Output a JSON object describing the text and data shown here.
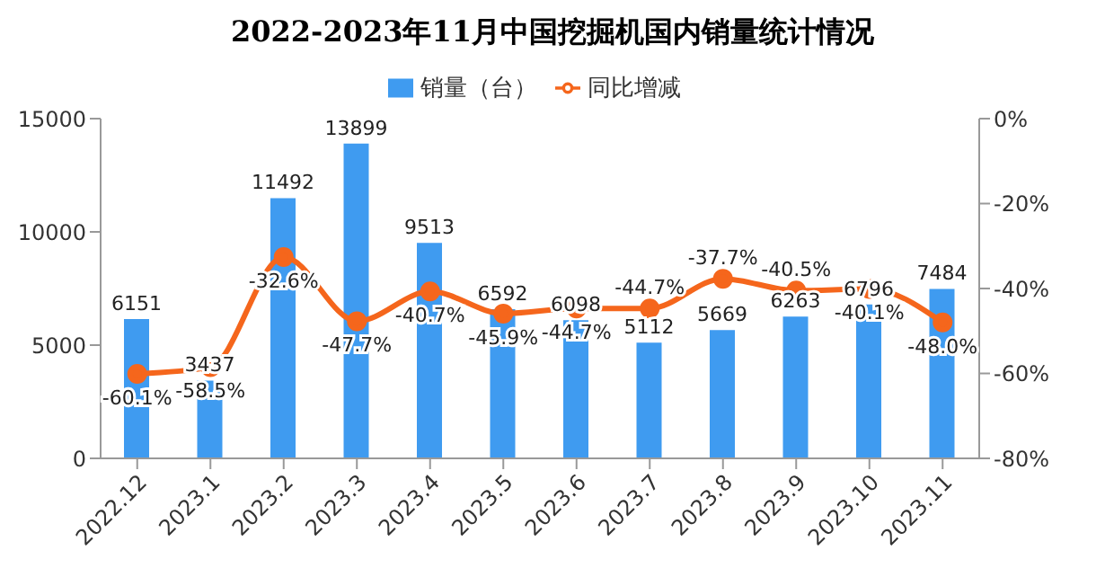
{
  "chart_data": {
    "type": "bar",
    "title": "2022-2023年11月中国挖掘机国内销量统计情况",
    "categories": [
      "2022.12",
      "2023.1",
      "2023.2",
      "2023.3",
      "2023.4",
      "2023.5",
      "2023.6",
      "2023.7",
      "2023.8",
      "2023.9",
      "2023.10",
      "2023.11"
    ],
    "series": [
      {
        "name": "销量（台）",
        "color": "#3f9bf0",
        "values": [
          6151,
          3437,
          11492,
          13899,
          9513,
          6592,
          6098,
          5112,
          5669,
          6263,
          6796,
          7484
        ],
        "value_labels": [
          "6151",
          "3437",
          "11492",
          "13899",
          "9513",
          "6592",
          "6098",
          "5112",
          "5669",
          "6263",
          "6796",
          "7484"
        ]
      },
      {
        "name": "同比增减",
        "type": "line",
        "axis": "y2",
        "color": "#f5661c",
        "values": [
          -60.1,
          -58.5,
          -32.6,
          -47.7,
          -40.7,
          -45.9,
          -44.7,
          -44.7,
          -37.7,
          -40.5,
          -40.1,
          -48.0
        ],
        "value_labels": [
          "-60.1%",
          "-58.5%",
          "-32.6%",
          "-47.7%",
          "-40.7%",
          "-45.9%",
          "-44.7%",
          "-44.7%",
          "-37.7%",
          "-40.5%",
          "-40.1%",
          "-48.0%"
        ]
      }
    ],
    "ylim": [
      0,
      15000
    ],
    "yticks": [
      0,
      5000,
      10000,
      15000
    ],
    "y2lim": [
      -80,
      0
    ],
    "y2ticks": [
      {
        "value": -80,
        "label": "-80%"
      },
      {
        "value": -60,
        "label": "-60%"
      },
      {
        "value": -40,
        "label": "-40%"
      },
      {
        "value": -20,
        "label": "-20%"
      },
      {
        "value": 0,
        "label": "0%"
      }
    ],
    "legend": "top",
    "grid": false,
    "marker": "circle"
  }
}
